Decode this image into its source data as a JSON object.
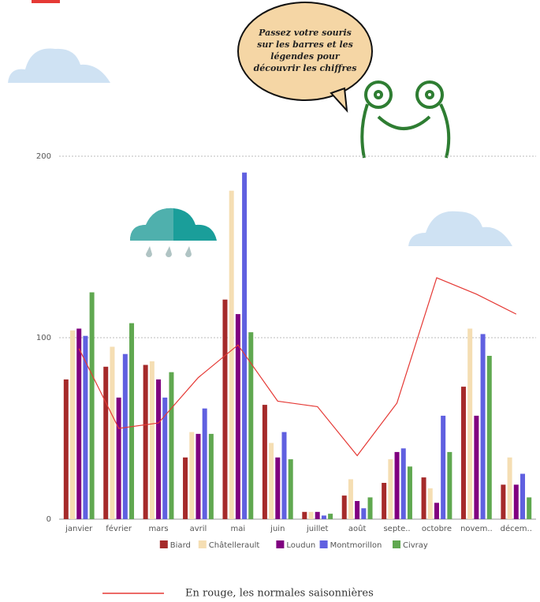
{
  "chart_data": {
    "type": "bar",
    "annotation": [
      "Passez votre souris",
      "sur les barres et les",
      "légendes pour",
      "découvrir les chiffres"
    ],
    "note": "En rouge, les normales saisonnières",
    "categories": [
      "janvier",
      "février",
      "mars",
      "avril",
      "mai",
      "juin",
      "juillet",
      "août",
      "septe..",
      "octobre",
      "novem..",
      "décem.."
    ],
    "series": [
      {
        "name": "Biard",
        "color": "#a52a2a",
        "values": [
          77,
          84,
          85,
          34,
          121,
          63,
          4,
          13,
          20,
          23,
          73,
          19
        ]
      },
      {
        "name": "Châtellerault",
        "color": "#f5deb3",
        "values": [
          104,
          95,
          87,
          48,
          181,
          42,
          4,
          22,
          33,
          17,
          105,
          34
        ]
      },
      {
        "name": "Loudun",
        "color": "#800080",
        "values": [
          105,
          67,
          77,
          47,
          113,
          34,
          4,
          10,
          37,
          9,
          57,
          19
        ]
      },
      {
        "name": "Montmorillon",
        "color": "#6060e0",
        "values": [
          101,
          91,
          67,
          61,
          191,
          48,
          2,
          6,
          39,
          57,
          102,
          25
        ]
      },
      {
        "name": "Civray",
        "color": "#60a850",
        "values": [
          125,
          108,
          81,
          47,
          103,
          33,
          3,
          12,
          29,
          37,
          90,
          12
        ]
      }
    ],
    "line": {
      "color": "#e53935",
      "values": [
        94,
        50,
        53,
        78,
        96,
        65,
        62,
        35,
        64,
        133,
        124,
        113
      ]
    },
    "ylim": [
      0,
      200
    ],
    "yticks": [
      0,
      100,
      200
    ],
    "grid": true
  }
}
